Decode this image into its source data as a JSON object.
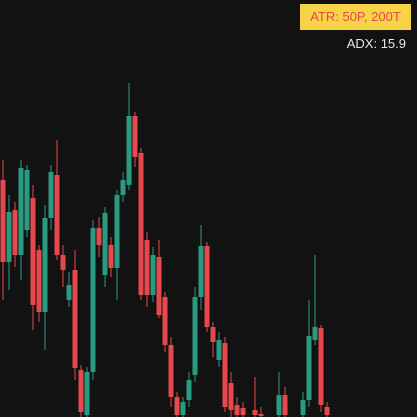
{
  "chart_data": {
    "type": "candlestick",
    "atr_label": "ATR: 50P, 200T",
    "adx_label": "ADX: 15.9",
    "up_color": "#2a9a80",
    "down_color": "#e5484d",
    "ylim": [
      0,
      417
    ],
    "categories": [
      null,
      null,
      null,
      null,
      null,
      null,
      null,
      null,
      null,
      null,
      null,
      null,
      null,
      null,
      null,
      null,
      null,
      null,
      null,
      null,
      null,
      null,
      null,
      null,
      null,
      null,
      null,
      null,
      null,
      null,
      null,
      null,
      null,
      null,
      null,
      null,
      null,
      null,
      null,
      null,
      null,
      null,
      null,
      null,
      null,
      null,
      null,
      null,
      null,
      null,
      null,
      null,
      null,
      null,
      null
    ],
    "open": [
      237,
      155,
      207,
      162,
      187,
      219,
      167,
      105,
      199,
      242,
      162,
      117,
      147,
      47,
      2,
      45,
      189,
      142,
      172,
      149,
      222,
      232,
      301,
      264,
      177,
      122,
      160,
      120,
      72,
      20,
      2,
      17,
      42,
      120,
      171,
      90,
      57,
      74,
      34,
      12,
      9,
      null,
      7,
      3,
      null,
      null,
      2,
      22,
      null,
      null,
      2,
      17,
      77,
      89,
      10
    ],
    "high": [
      257,
      222,
      215,
      257,
      252,
      232,
      172,
      212,
      252,
      277,
      172,
      145,
      167,
      52,
      50,
      197,
      200,
      210,
      180,
      227,
      245,
      334,
      305,
      269,
      185,
      170,
      177,
      125,
      80,
      25,
      20,
      45,
      130,
      192,
      175,
      95,
      85,
      80,
      45,
      20,
      15,
      null,
      40,
      10,
      null,
      null,
      45,
      30,
      null,
      null,
      25,
      117,
      162,
      92,
      15
    ],
    "low": [
      117,
      127,
      150,
      137,
      180,
      87,
      95,
      67,
      187,
      157,
      130,
      110,
      37,
      -10,
      -10,
      37,
      160,
      130,
      140,
      117,
      215,
      227,
      250,
      117,
      110,
      115,
      99,
      65,
      10,
      -10,
      -10,
      10,
      35,
      107,
      85,
      60,
      50,
      5,
      0,
      -10,
      -10,
      null,
      -10,
      -10,
      null,
      null,
      -10,
      -10,
      null,
      null,
      -10,
      10,
      72,
      5,
      -10
    ],
    "close": [
      155,
      205,
      162,
      249,
      247,
      112,
      105,
      199,
      245,
      162,
      147,
      132,
      49,
      5,
      45,
      189,
      172,
      204,
      149,
      222,
      237,
      301,
      260,
      122,
      122,
      162,
      102,
      72,
      20,
      2,
      15,
      37,
      120,
      171,
      90,
      75,
      77,
      10,
      7,
      2,
      2,
      null,
      2,
      1,
      null,
      null,
      22,
      2,
      null,
      null,
      17,
      81,
      90,
      12,
      2
    ]
  }
}
